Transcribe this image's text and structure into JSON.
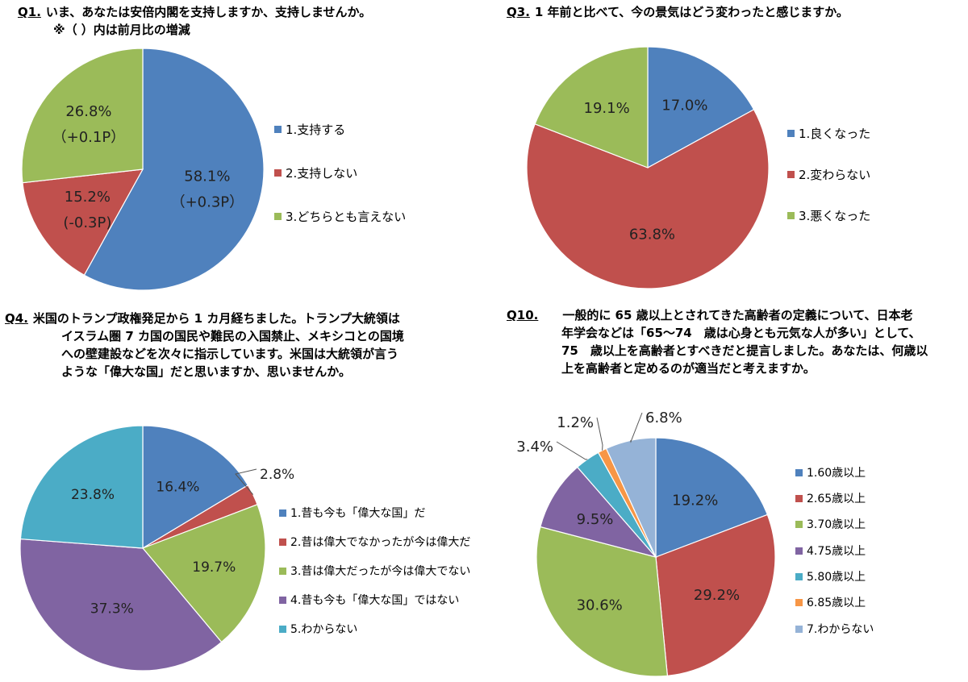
{
  "chart_data": [
    {
      "id": "q1",
      "type": "pie",
      "qnum": "Q1.",
      "title_lines": [
        "いま、あなたは安倍内閣を支持しますか、支持しませんか。",
        "※（ ）内は前月比の増減"
      ],
      "categories": [
        "1.支持する",
        "2.支持しない",
        "3.どちらとも言えない"
      ],
      "values": [
        58.1,
        15.2,
        26.8
      ],
      "value_labels": [
        "58.1%",
        "15.2%",
        "26.8%"
      ],
      "sub_labels": [
        "（+0.3P）",
        "(-0.3P)",
        "（+0.1P）"
      ],
      "colors": [
        "#4f81bd",
        "#c0504d",
        "#9bbb59"
      ],
      "legend_position": "right"
    },
    {
      "id": "q3",
      "type": "pie",
      "qnum": "Q3.",
      "title_lines": [
        "1 年前と比べて、今の景気はどう変わったと感じますか。"
      ],
      "categories": [
        "1.良くなった",
        "2.変わらない",
        "3.悪くなった"
      ],
      "values": [
        17.0,
        63.8,
        19.1
      ],
      "value_labels": [
        "17.0%",
        "63.8%",
        "19.1%"
      ],
      "colors": [
        "#4f81bd",
        "#c0504d",
        "#9bbb59"
      ],
      "legend_position": "right"
    },
    {
      "id": "q4",
      "type": "pie",
      "qnum": "Q4.",
      "title_lines": [
        "米国のトランプ政権発足から 1 カ月経ちました。トランプ大統領は",
        "イスラム圏 7 カ国の国民や難民の入国禁止、メキシコとの国境",
        "への壁建設などを次々に指示しています。米国は大統領が言う",
        "ような「偉大な国」だと思いますか、思いませんか。"
      ],
      "categories": [
        "1.昔も今も「偉大な国」だ",
        "2.昔は偉大でなかったが今は偉大だ",
        "3.昔は偉大だったが今は偉大でない",
        "4.昔も今も「偉大な国」ではない",
        "5.わからない"
      ],
      "values": [
        16.4,
        2.8,
        19.7,
        37.3,
        23.8
      ],
      "value_labels": [
        "16.4%",
        "2.8%",
        "19.7%",
        "37.3%",
        "23.8%"
      ],
      "colors": [
        "#4f81bd",
        "#c0504d",
        "#9bbb59",
        "#8064a2",
        "#4bacc6"
      ],
      "legend_position": "right"
    },
    {
      "id": "q10",
      "type": "pie",
      "qnum": "Q10.",
      "title_lines": [
        "一般的に 65 歳以上とされてきた高齢者の定義について、日本老",
        "年学会などは「65～74　歳は心身とも元気な人が多い」として、",
        "75　歳以上を高齢者とすべきだと提言しました。あなたは、何歳以",
        "上を高齢者と定めるのが適当だと考えますか。"
      ],
      "categories": [
        "1.60歳以上",
        "2.65歳以上",
        "3.70歳以上",
        "4.75歳以上",
        "5.80歳以上",
        "6.85歳以上",
        "7.わからない"
      ],
      "values": [
        19.2,
        29.2,
        30.6,
        9.5,
        3.4,
        1.2,
        6.8
      ],
      "value_labels": [
        "19.2%",
        "29.2%",
        "30.6%",
        "9.5%",
        "3.4%",
        "1.2%",
        "6.8%"
      ],
      "colors": [
        "#4f81bd",
        "#c0504d",
        "#9bbb59",
        "#8064a2",
        "#4bacc6",
        "#f79646",
        "#95b3d7"
      ],
      "legend_position": "right"
    }
  ]
}
